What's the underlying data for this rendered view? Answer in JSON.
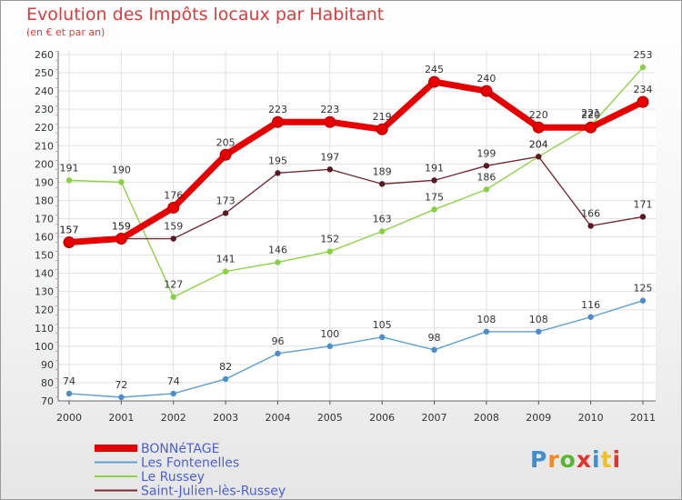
{
  "header": {
    "title": "Evolution des Impôts locaux par Habitant",
    "subtitle": "(en € et par an)"
  },
  "logo": {
    "text": "Proxiti"
  },
  "chart_data": {
    "type": "line",
    "title": "Evolution des Impôts locaux par Habitant",
    "subtitle": "(en € et par an)",
    "xlabel": "",
    "ylabel": "",
    "x": [
      "2000",
      "2001",
      "2002",
      "2003",
      "2004",
      "2005",
      "2006",
      "2007",
      "2008",
      "2009",
      "2010",
      "2011"
    ],
    "y_ticks": [
      70,
      80,
      90,
      100,
      110,
      120,
      130,
      140,
      150,
      160,
      170,
      180,
      190,
      200,
      210,
      220,
      230,
      240,
      250,
      260
    ],
    "ylim": [
      70,
      260
    ],
    "grid": true,
    "legend": "bottom-left",
    "series": [
      {
        "name": "BONNéTAGE",
        "color": "#e80000",
        "values": [
          157,
          159,
          176,
          205,
          223,
          223,
          219,
          245,
          240,
          220,
          220,
          234
        ]
      },
      {
        "name": "Les Fontenelles",
        "color": "#5d9fd4",
        "values": [
          74,
          72,
          74,
          82,
          96,
          100,
          105,
          98,
          108,
          108,
          116,
          125
        ]
      },
      {
        "name": "Le Russey",
        "color": "#8cd446",
        "values": [
          191,
          190,
          127,
          141,
          146,
          152,
          163,
          175,
          186,
          204,
          221,
          253
        ]
      },
      {
        "name": "Saint-Julien-lès-Russey",
        "color": "#7a2a34",
        "values": [
          157,
          159,
          159,
          173,
          195,
          197,
          189,
          191,
          199,
          204,
          166,
          171
        ]
      }
    ]
  }
}
